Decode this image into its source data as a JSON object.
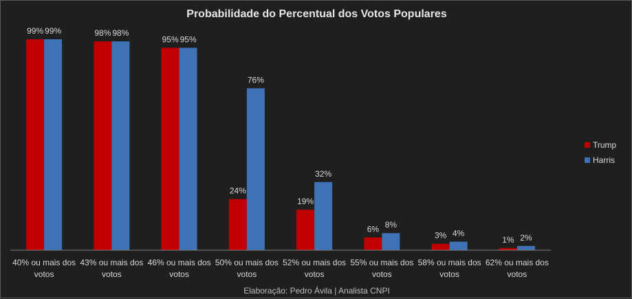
{
  "chart_data": {
    "type": "bar",
    "title": "Probabilidade do Percentual dos Votos Populares",
    "categories": [
      [
        "40% ou mais dos",
        "votos"
      ],
      [
        "43% ou mais dos",
        "votos"
      ],
      [
        "46% ou mais dos",
        "votos"
      ],
      [
        "50% ou mais dos",
        "votos"
      ],
      [
        "52% ou mais dos",
        "votos"
      ],
      [
        "55% ou mais dos",
        "votos"
      ],
      [
        "58% ou mais dos",
        "votos"
      ],
      [
        "62% ou mais dos",
        "votos"
      ]
    ],
    "series": [
      {
        "name": "Trump",
        "color": "#c00000",
        "values": [
          99,
          98,
          95,
          24,
          19,
          6,
          3,
          1
        ],
        "labels": [
          "99%",
          "98%",
          "95%",
          "24%",
          "19%",
          "6%",
          "3%",
          "1%"
        ]
      },
      {
        "name": "Harris",
        "color": "#3f72b5",
        "values": [
          99,
          98,
          95,
          76,
          32,
          8,
          4,
          2
        ],
        "labels": [
          "99%",
          "98%",
          "95%",
          "76%",
          "32%",
          "8%",
          "4%",
          "2%"
        ]
      }
    ],
    "ylim": [
      0,
      100
    ],
    "legend_position": "right",
    "grid": false
  },
  "footer": "Elaboração: Pedro Ávila | Analista CNPI"
}
